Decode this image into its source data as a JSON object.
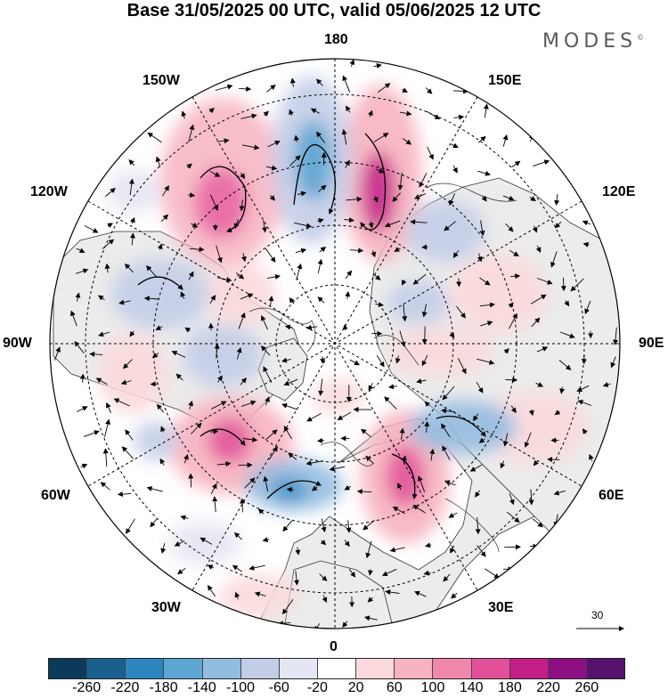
{
  "title": "Base 31/05/2025 00 UTC, valid 05/06/2025 12 UTC",
  "brand": {
    "name": "MODES",
    "mark": "©"
  },
  "longitude_labels": {
    "top": "180",
    "bottom": "0",
    "left": "90W",
    "right": "90E",
    "upper_left_1": "150W",
    "upper_left_2": "120W",
    "upper_right_1": "150E",
    "upper_right_2": "120E",
    "lower_left_1": "60W",
    "lower_left_2": "30W",
    "lower_right_1": "60E",
    "lower_right_2": "30E"
  },
  "vector_reference": {
    "value": "30"
  },
  "colorbar": {
    "colors": [
      "#0b3a5a",
      "#19608e",
      "#2b86bf",
      "#5ea6d2",
      "#93bde0",
      "#c3cde8",
      "#e5e6f3",
      "#ffffff",
      "#fbd9dc",
      "#f7b3bf",
      "#f186ac",
      "#e2509a",
      "#c41e87",
      "#8d0f83",
      "#56126f"
    ],
    "tick_labels": [
      "-260",
      "-220",
      "-180",
      "-140",
      "-100",
      "-60",
      "-20",
      "20",
      "60",
      "100",
      "140",
      "180",
      "220",
      "260"
    ]
  }
}
